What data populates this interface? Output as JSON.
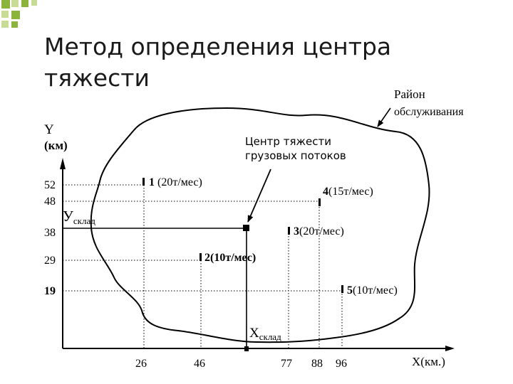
{
  "title_lines": [
    "Метод определения центра",
    "тяжести"
  ],
  "colors": {
    "square_dark": "#8cb43c",
    "square_light": "#c9dc96",
    "title": "#1a1a1a",
    "diagram": "#000000"
  },
  "axes": {
    "y_label_1": "Y",
    "y_label_2": "(км)",
    "x_label": "X(км.)",
    "y_ticks": [
      "52",
      "48",
      "38",
      "29",
      "19"
    ],
    "x_ticks": [
      "26",
      "46",
      "77",
      "88",
      "96"
    ]
  },
  "region_label_1": "Район",
  "region_label_2": "обслуживания",
  "center_label_1": "Центр тяжести",
  "center_label_2": "грузовых потоков",
  "y_sklad_main": "У",
  "y_sklad_sub": "склад",
  "x_sklad_main": "Х",
  "x_sklad_sub": "склад",
  "points": [
    {
      "num": "1",
      "text": "(20т/мес)"
    },
    {
      "num": "2",
      "text": "(10т/мес)"
    },
    {
      "num": "3",
      "text": "(20т/мес)"
    },
    {
      "num": "4",
      "text": "(15т/мес)"
    },
    {
      "num": "5",
      "text": "(10т/мес)"
    }
  ]
}
